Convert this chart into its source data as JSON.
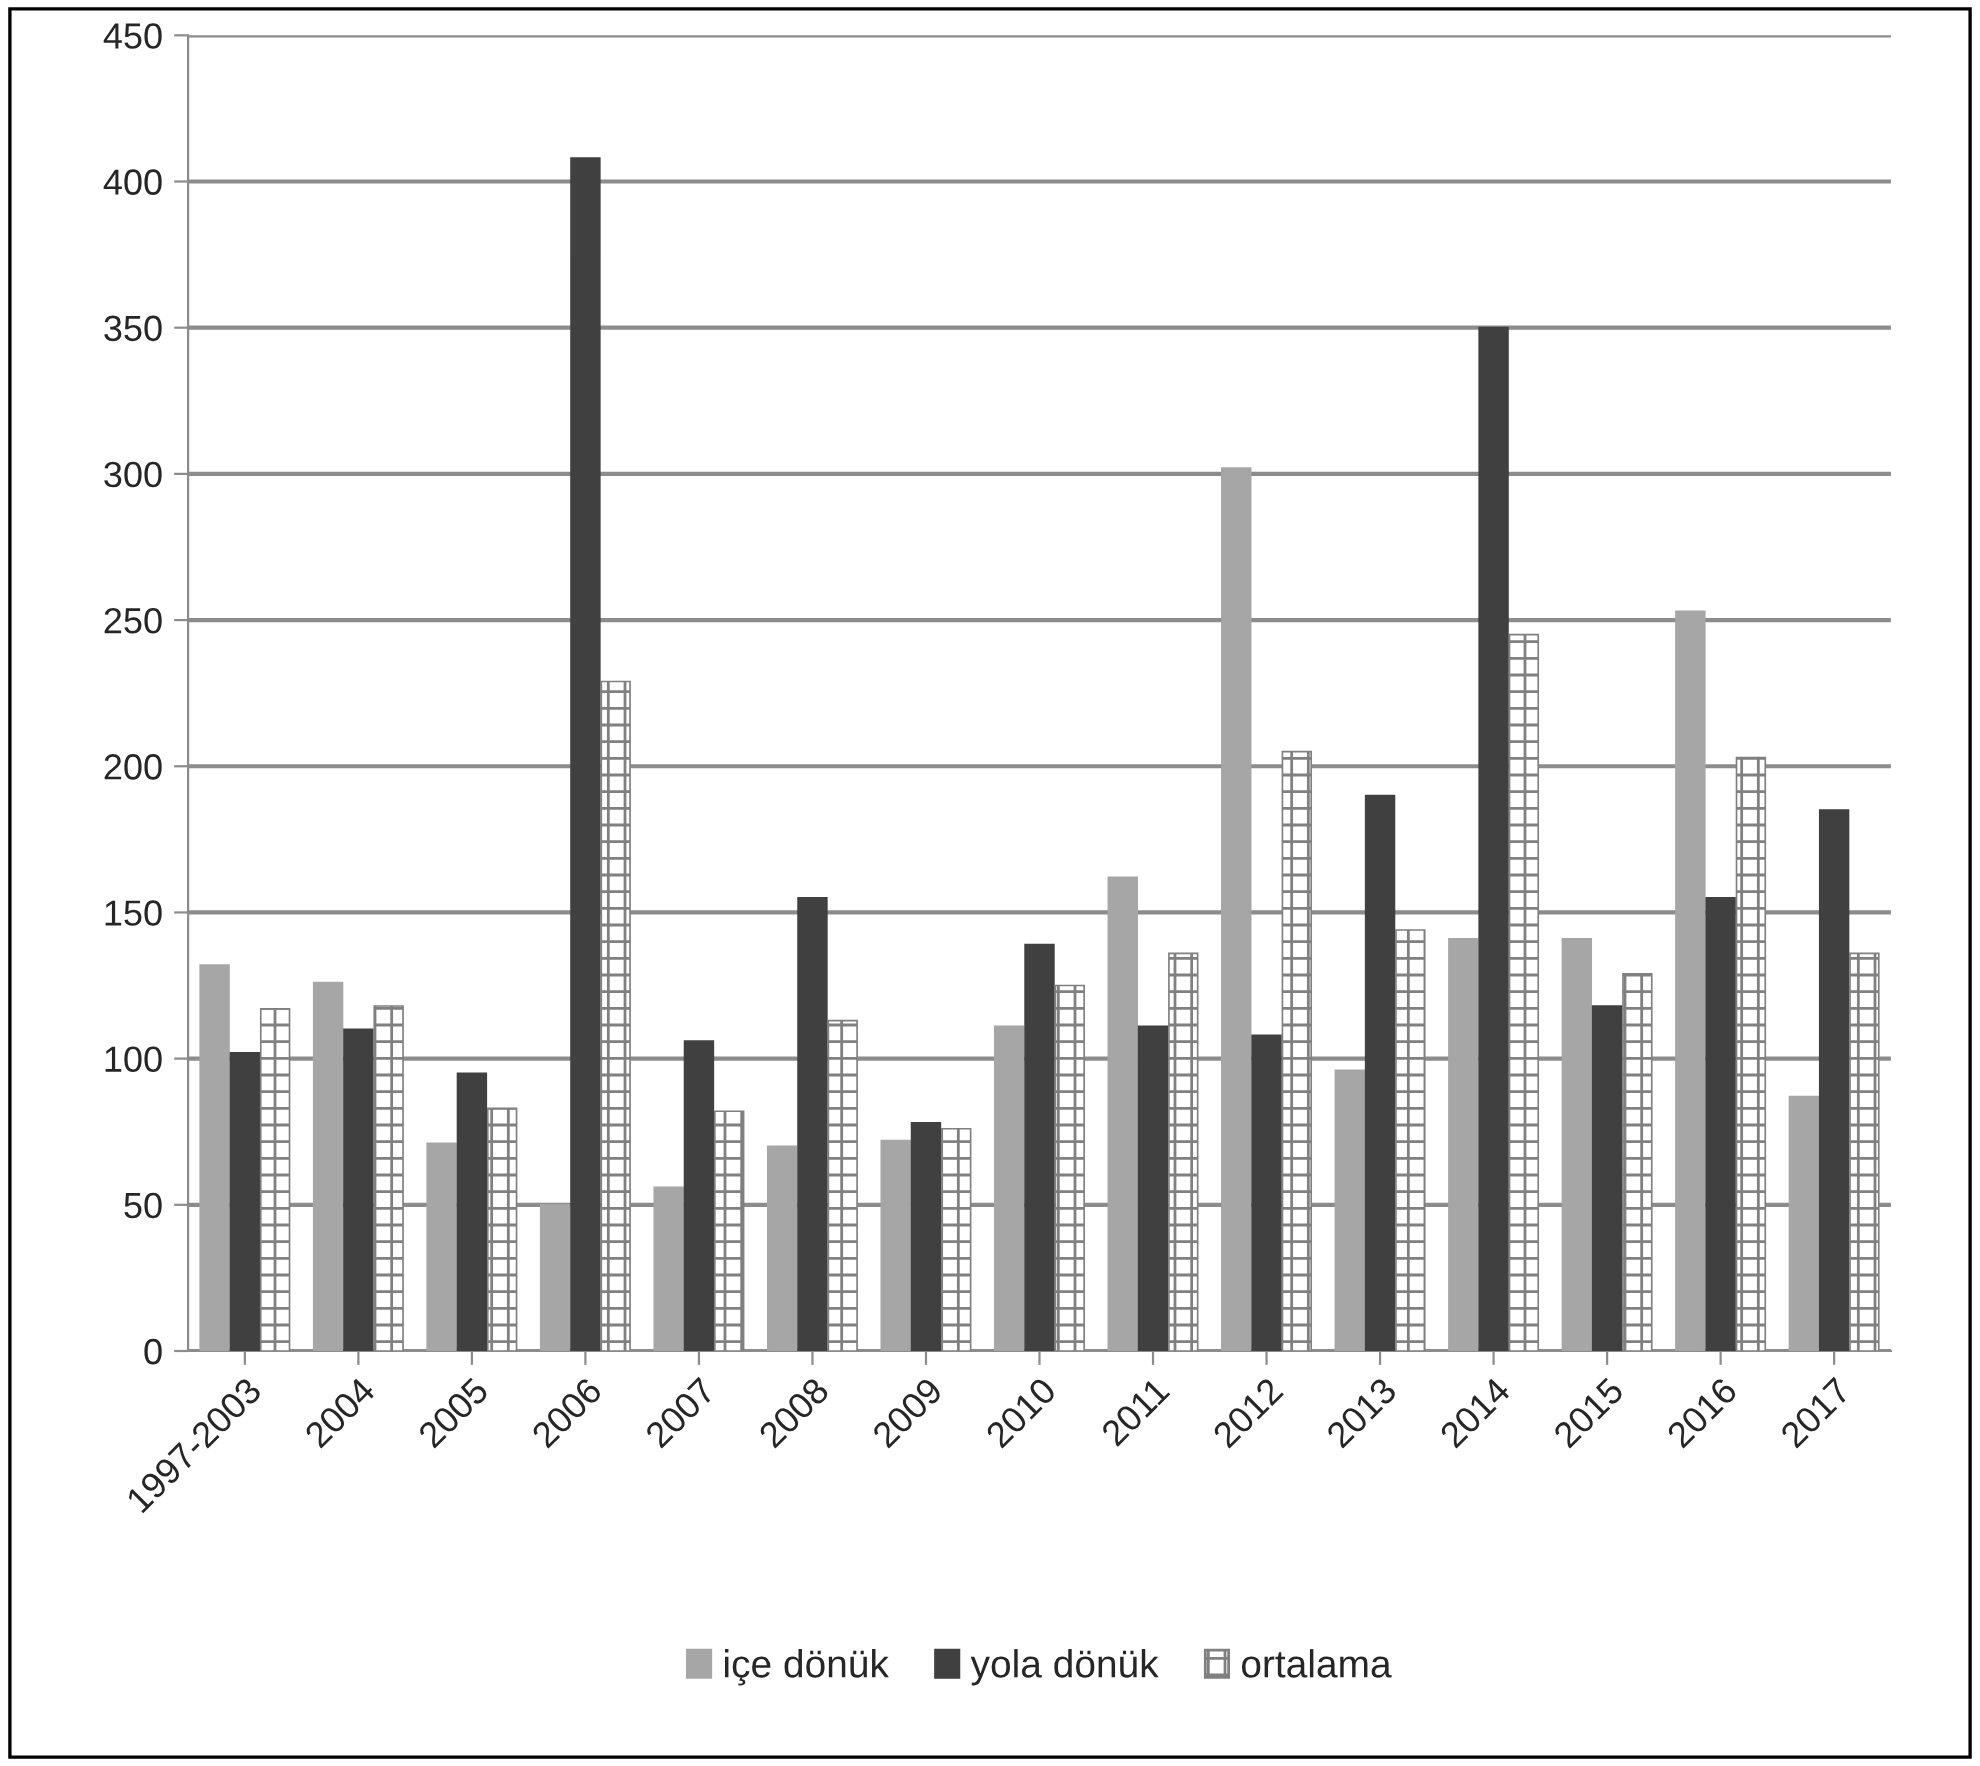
{
  "chart_data": {
    "type": "bar",
    "categories": [
      "1997-2003",
      "2004",
      "2005",
      "2006",
      "2007",
      "2008",
      "2009",
      "2010",
      "2011",
      "2012",
      "2013",
      "2014",
      "2015",
      "2016",
      "2017"
    ],
    "series": [
      {
        "name": "içe dönük",
        "color": "#a6a6a6",
        "values": [
          132,
          126,
          71,
          50,
          56,
          70,
          72,
          111,
          162,
          302,
          96,
          141,
          141,
          253,
          87
        ]
      },
      {
        "name": "yola dönük",
        "color": "#404040",
        "values": [
          102,
          110,
          95,
          408,
          106,
          155,
          78,
          139,
          111,
          108,
          190,
          350,
          118,
          155,
          185
        ]
      },
      {
        "name": "ortalama",
        "color": "#808080",
        "marker": "cross",
        "values": [
          117,
          118,
          83,
          229,
          82,
          113,
          76,
          125,
          136,
          205,
          144,
          245,
          129,
          203,
          136
        ]
      }
    ],
    "ylim": [
      0,
      450
    ],
    "yticks": [
      0,
      50,
      100,
      150,
      200,
      250,
      300,
      350,
      400,
      450
    ],
    "grid": "y",
    "legend": "bottom"
  }
}
